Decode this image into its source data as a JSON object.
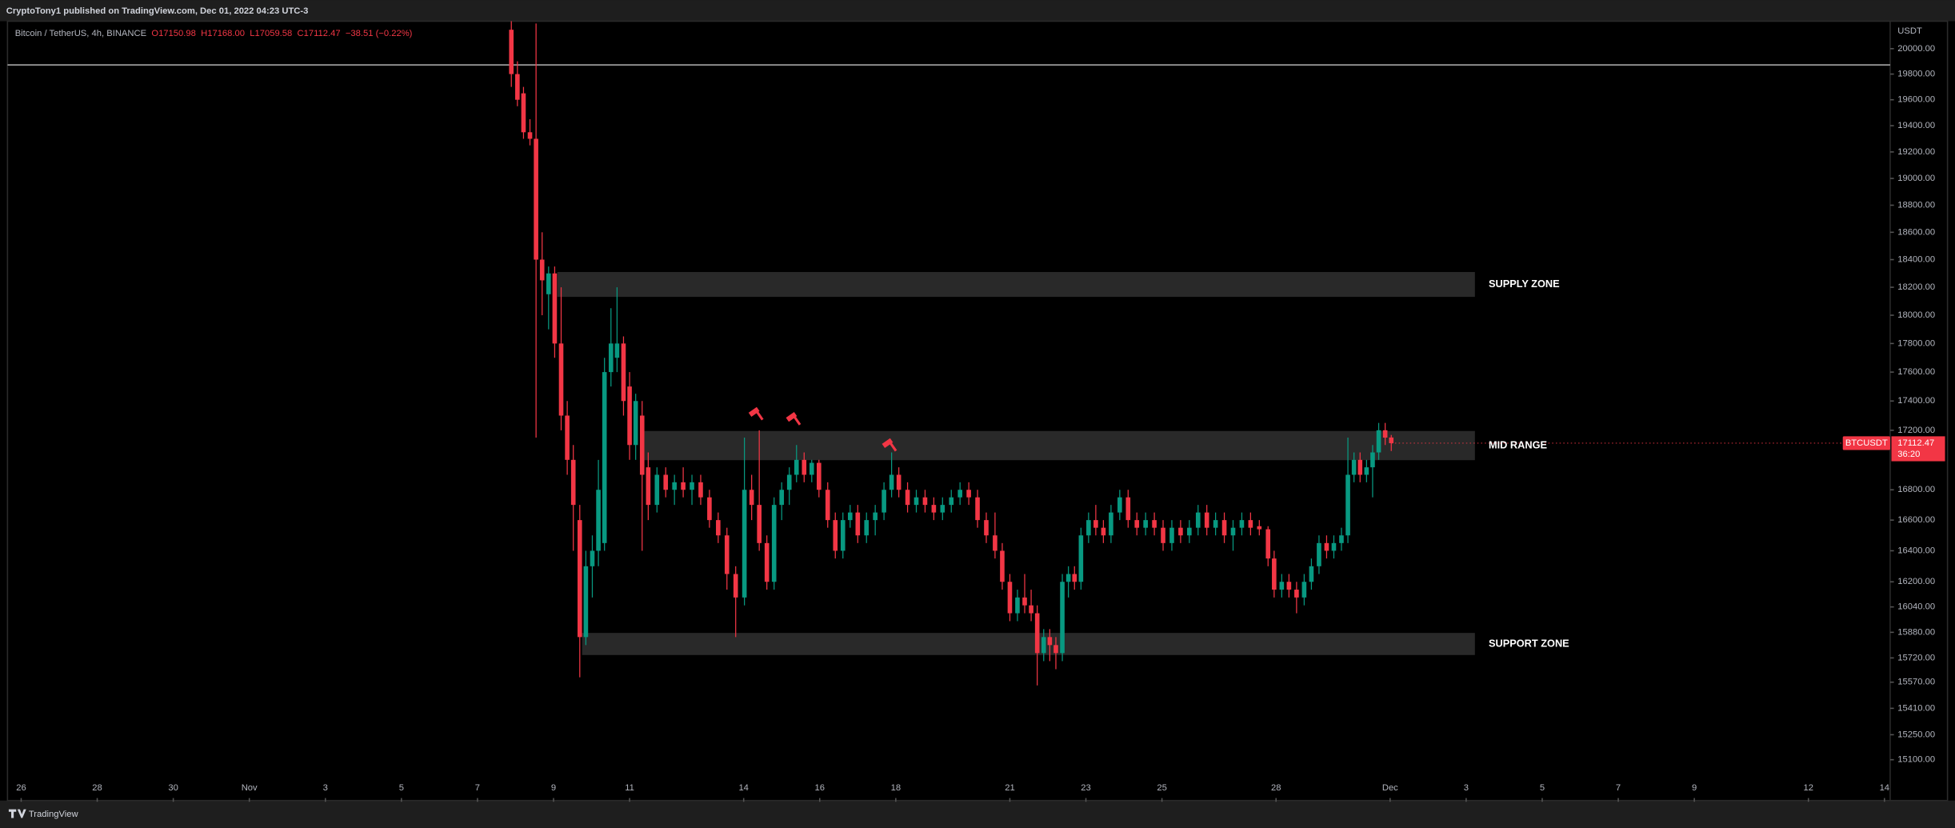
{
  "header": {
    "publisher": "CryptoTony1 published on TradingView.com, Dec 01, 2022 04:23 UTC-3"
  },
  "footer": {
    "brand": "TradingView"
  },
  "chart_data": {
    "type": "candlestick",
    "symbol": "Bitcoin / TetherUS, 4h, BINANCE",
    "ohlc_labels": [
      "O17150.98",
      "H17168.00",
      "L17059.58",
      "C17112.47",
      "−38.51 (−0.22%)"
    ],
    "price_unit": "USDT",
    "log_scale": true,
    "up_color": "#089981",
    "down_color": "#f23645",
    "xlim": [
      -0.36,
      49.15
    ],
    "xticks": [
      {
        "value": 0,
        "label": "26"
      },
      {
        "value": 2,
        "label": "28"
      },
      {
        "value": 4,
        "label": "30"
      },
      {
        "value": 6,
        "label": "Nov"
      },
      {
        "value": 8,
        "label": "3"
      },
      {
        "value": 10,
        "label": "5"
      },
      {
        "value": 12,
        "label": "7"
      },
      {
        "value": 14,
        "label": "9"
      },
      {
        "value": 16,
        "label": "11"
      },
      {
        "value": 19,
        "label": "14"
      },
      {
        "value": 21,
        "label": "16"
      },
      {
        "value": 23,
        "label": "18"
      },
      {
        "value": 26,
        "label": "21"
      },
      {
        "value": 28,
        "label": "23"
      },
      {
        "value": 30,
        "label": "25"
      },
      {
        "value": 33,
        "label": "28"
      },
      {
        "value": 36,
        "label": "Dec"
      },
      {
        "value": 38,
        "label": "3"
      },
      {
        "value": 40,
        "label": "5"
      },
      {
        "value": 42,
        "label": "7"
      },
      {
        "value": 44,
        "label": "9"
      },
      {
        "value": 47,
        "label": "12"
      },
      {
        "value": 49,
        "label": "14"
      }
    ],
    "ylim": [
      14873,
      20218
    ],
    "yticks": [
      {
        "value": 20000,
        "label": "20000.00"
      },
      {
        "value": 19800,
        "label": "19800.00"
      },
      {
        "value": 19600,
        "label": "19600.00"
      },
      {
        "value": 19400,
        "label": "19400.00"
      },
      {
        "value": 19200,
        "label": "19200.00"
      },
      {
        "value": 19000,
        "label": "19000.00"
      },
      {
        "value": 18800,
        "label": "18800.00"
      },
      {
        "value": 18600,
        "label": "18600.00"
      },
      {
        "value": 18400,
        "label": "18400.00"
      },
      {
        "value": 18200,
        "label": "18200.00"
      },
      {
        "value": 18000,
        "label": "18000.00"
      },
      {
        "value": 17800,
        "label": "17800.00"
      },
      {
        "value": 17600,
        "label": "17600.00"
      },
      {
        "value": 17400,
        "label": "17400.00"
      },
      {
        "value": 17200,
        "label": "17200.00"
      },
      {
        "value": 16800,
        "label": "16800.00"
      },
      {
        "value": 16600,
        "label": "16600.00"
      },
      {
        "value": 16400,
        "label": "16400.00"
      },
      {
        "value": 16200,
        "label": "16200.00"
      },
      {
        "value": 16040,
        "label": "16040.00"
      },
      {
        "value": 15880,
        "label": "15880.00"
      },
      {
        "value": 15720,
        "label": "15720.00"
      },
      {
        "value": 15570,
        "label": "15570.00"
      },
      {
        "value": 15410,
        "label": "15410.00"
      },
      {
        "value": 15250,
        "label": "15250.00"
      },
      {
        "value": 15100,
        "label": "15100.00"
      }
    ],
    "horizontal_line": 19872,
    "zones": [
      {
        "label": "SUPPLY ZONE",
        "low": 18131,
        "high": 18310,
        "start": 14.1,
        "end": 38.23
      },
      {
        "label": "MID RANGE",
        "low": 16998,
        "high": 17195,
        "start": 16.39,
        "end": 38.23
      },
      {
        "label": "SUPPORT ZONE",
        "low": 15738,
        "high": 15876,
        "start": 14.75,
        "end": 38.23
      }
    ],
    "last_price": {
      "symbol": "BTCUSDT",
      "value": 17112.47,
      "label": "17112.47",
      "countdown": "36:20"
    },
    "candles": {
      "x": [
        12.89,
        13.05,
        13.21,
        13.38,
        13.54,
        13.7,
        13.87,
        14.03,
        14.2,
        14.36,
        14.52,
        14.69,
        14.85,
        15.02,
        15.18,
        15.34,
        15.51,
        15.67,
        15.84,
        16.0,
        16.16,
        16.33,
        16.49,
        16.72,
        16.95,
        17.18,
        17.41,
        17.64,
        17.87,
        18.1,
        18.33,
        18.56,
        18.79,
        19.02,
        19.21,
        19.41,
        19.61,
        19.8,
        20.0,
        20.2,
        20.39,
        20.59,
        20.79,
        20.98,
        21.21,
        21.41,
        21.61,
        21.8,
        22.0,
        22.23,
        22.46,
        22.69,
        22.89,
        23.08,
        23.31,
        23.54,
        23.77,
        24.0,
        24.23,
        24.46,
        24.69,
        24.92,
        25.15,
        25.38,
        25.61,
        25.8,
        26.0,
        26.2,
        26.39,
        26.56,
        26.72,
        26.89,
        27.05,
        27.21,
        27.38,
        27.54,
        27.7,
        27.87,
        28.07,
        28.26,
        28.46,
        28.66,
        28.89,
        29.11,
        29.34,
        29.57,
        29.8,
        30.03,
        30.26,
        30.49,
        30.72,
        30.95,
        31.18,
        31.41,
        31.64,
        31.87,
        32.1,
        32.33,
        32.56,
        32.79,
        32.95,
        33.15,
        33.34,
        33.54,
        33.74,
        33.93,
        34.13,
        34.33,
        34.52,
        34.72,
        34.89,
        35.05,
        35.21,
        35.38,
        35.54,
        35.7,
        35.87,
        36.03
      ],
      "open": [
        20150,
        19800,
        19650,
        19350,
        19300,
        18400,
        18150,
        18300,
        17800,
        17300,
        17000,
        16600,
        15850,
        16300,
        16400,
        16450,
        17600,
        17700,
        17800,
        17500,
        17100,
        17300,
        16950,
        16700,
        16900,
        16800,
        16850,
        16800,
        16850,
        16750,
        16600,
        16500,
        16250,
        16100,
        16800,
        16700,
        16450,
        16200,
        16700,
        16800,
        16900,
        17000,
        16900,
        16980,
        16800,
        16600,
        16400,
        16600,
        16650,
        16500,
        16600,
        16650,
        16800,
        16900,
        16800,
        16700,
        16750,
        16700,
        16650,
        16700,
        16750,
        16800,
        16750,
        16600,
        16500,
        16400,
        16200,
        16000,
        16100,
        16050,
        16000,
        15750,
        15850,
        15800,
        15750,
        16200,
        16250,
        16200,
        16500,
        16600,
        16550,
        16500,
        16650,
        16750,
        16600,
        16550,
        16600,
        16550,
        16450,
        16550,
        16500,
        16550,
        16650,
        16550,
        16600,
        16500,
        16550,
        16600,
        16560,
        16540,
        16350,
        16150,
        16200,
        16150,
        16100,
        16200,
        16300,
        16450,
        16400,
        16450,
        16500,
        16900,
        17000,
        16900,
        16950,
        17050,
        17200,
        17150.98
      ],
      "high": [
        20250,
        19900,
        19700,
        19450,
        20200,
        18600,
        18350,
        18350,
        18200,
        17400,
        17100,
        16700,
        16400,
        16500,
        17000,
        17700,
        18050,
        18200,
        17850,
        17600,
        17450,
        17400,
        17050,
        16950,
        16950,
        16900,
        16950,
        16900,
        16900,
        16800,
        16650,
        16550,
        16300,
        17150,
        16900,
        17200,
        16500,
        16750,
        16850,
        16950,
        17100,
        17050,
        17000,
        17000,
        16850,
        16650,
        16650,
        16700,
        16700,
        16650,
        16700,
        16850,
        17050,
        16950,
        16850,
        16800,
        16800,
        16750,
        16750,
        16800,
        16850,
        16850,
        16800,
        16650,
        16650,
        16450,
        16250,
        16150,
        16250,
        16150,
        16050,
        15900,
        15900,
        15850,
        16250,
        16300,
        16300,
        16550,
        16650,
        16700,
        16600,
        16700,
        16800,
        16800,
        16650,
        16650,
        16650,
        16600,
        16600,
        16600,
        16600,
        16700,
        16700,
        16650,
        16650,
        16600,
        16650,
        16650,
        16600,
        16560,
        16400,
        16250,
        16250,
        16200,
        16250,
        16350,
        16500,
        16500,
        16500,
        16550,
        17150,
        17050,
        17050,
        17000,
        17100,
        17250,
        17250,
        17168
      ],
      "low": [
        19700,
        19550,
        19300,
        19250,
        17150,
        18000,
        17900,
        17700,
        17200,
        16900,
        16400,
        15600,
        15800,
        16100,
        16300,
        16400,
        17500,
        17600,
        17300,
        17000,
        17000,
        16400,
        16600,
        16650,
        16750,
        16700,
        16750,
        16700,
        16700,
        16550,
        16450,
        16150,
        15850,
        16050,
        16600,
        16400,
        16150,
        16150,
        16600,
        16700,
        16850,
        16850,
        16850,
        16750,
        16550,
        16350,
        16350,
        16550,
        16450,
        16450,
        16500,
        16600,
        16750,
        16750,
        16650,
        16650,
        16650,
        16600,
        16600,
        16650,
        16700,
        16700,
        16550,
        16450,
        16350,
        16150,
        15950,
        15950,
        16000,
        15950,
        15550,
        15700,
        15700,
        15650,
        15700,
        16100,
        16150,
        16150,
        16450,
        16500,
        16450,
        16450,
        16600,
        16550,
        16500,
        16500,
        16500,
        16400,
        16400,
        16450,
        16450,
        16500,
        16500,
        16500,
        16450,
        16400,
        16500,
        16500,
        16500,
        16300,
        16100,
        16100,
        16100,
        16000,
        16050,
        16150,
        16250,
        16350,
        16350,
        16400,
        16450,
        16850,
        16850,
        16850,
        16750,
        17000,
        17100,
        17059.58
      ],
      "close": [
        19800,
        19600,
        19350,
        19300,
        18400,
        18250,
        18300,
        17800,
        17300,
        17000,
        16700,
        15850,
        16300,
        16400,
        16800,
        17600,
        17800,
        17800,
        17400,
        17100,
        17400,
        16900,
        16700,
        16900,
        16800,
        16850,
        16800,
        16850,
        16750,
        16600,
        16500,
        16250,
        16100,
        16800,
        16700,
        16450,
        16200,
        16700,
        16800,
        16900,
        17000,
        16900,
        16980,
        16800,
        16600,
        16400,
        16600,
        16650,
        16500,
        16600,
        16650,
        16800,
        16900,
        16800,
        16700,
        16750,
        16700,
        16650,
        16700,
        16750,
        16800,
        16750,
        16600,
        16500,
        16400,
        16200,
        16000,
        16100,
        16050,
        16000,
        15750,
        15850,
        15800,
        15750,
        16200,
        16250,
        16200,
        16500,
        16600,
        16550,
        16500,
        16650,
        16750,
        16600,
        16550,
        16600,
        16550,
        16450,
        16550,
        16500,
        16550,
        16650,
        16550,
        16600,
        16500,
        16550,
        16600,
        16550,
        16540,
        16350,
        16150,
        16200,
        16150,
        16100,
        16200,
        16300,
        16450,
        16400,
        16450,
        16500,
        16900,
        17000,
        16900,
        16950,
        17050,
        17200,
        17150,
        17112.47
      ]
    }
  }
}
